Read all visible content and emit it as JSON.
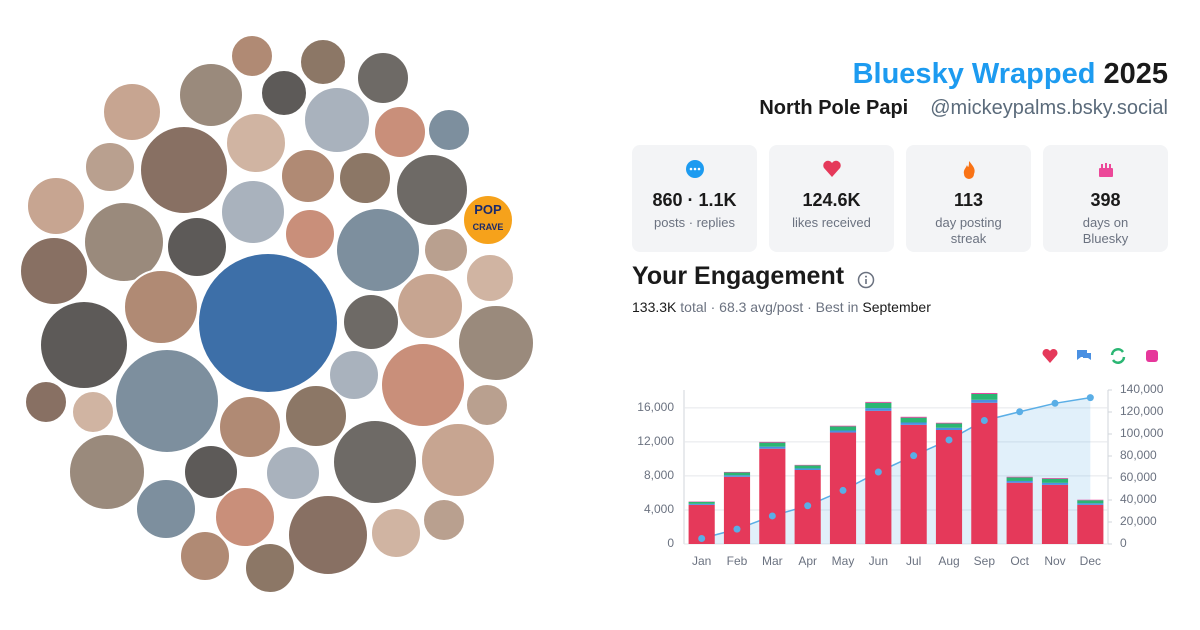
{
  "header": {
    "title": "Bluesky Wrapped",
    "year": "2025",
    "display_name": "North Pole Papi",
    "handle": "@mickeypalms.bsky.social"
  },
  "stats": [
    {
      "value": "860 · 1.1K",
      "label": "posts · replies"
    },
    {
      "value": "124.6K",
      "label": "likes received"
    },
    {
      "value": "113",
      "label": "day posting streak"
    },
    {
      "value": "398",
      "label": "days on Bluesky"
    }
  ],
  "engagement": {
    "title": "Your Engagement",
    "summary": [
      "133.3K",
      "total · 68.3 avg/post · Best in",
      "September"
    ]
  },
  "avatar_labels": [
    "POP",
    "CRAVE"
  ],
  "chart_data": {
    "type": "bar",
    "stacked": true,
    "grid": true,
    "categories": [
      "Jan",
      "Feb",
      "Mar",
      "Apr",
      "May",
      "Jun",
      "Jul",
      "Aug",
      "Sep",
      "Oct",
      "Nov",
      "Dec"
    ],
    "series": [
      {
        "color": "#e5395a",
        "values": [
          4600,
          7900,
          11200,
          8700,
          13100,
          15650,
          14000,
          13400,
          16600,
          7200,
          6950,
          4600
        ]
      },
      {
        "color": "#4a90e2",
        "values": [
          120,
          170,
          240,
          180,
          240,
          320,
          280,
          260,
          350,
          210,
          240,
          180
        ]
      },
      {
        "color": "#2bb673",
        "values": [
          240,
          340,
          480,
          360,
          480,
          630,
          570,
          510,
          690,
          420,
          480,
          360
        ]
      },
      {
        "color": "#e6379b",
        "values": [
          40,
          60,
          80,
          60,
          80,
          100,
          100,
          80,
          110,
          70,
          80,
          60
        ]
      },
      {
        "type": "line",
        "axis": "y2",
        "color": "#5aaee6",
        "values": [
          5000,
          13500,
          25500,
          34800,
          48700,
          65400,
          80300,
          94600,
          112300,
          120200,
          127900,
          133100
        ]
      }
    ],
    "ylim": [
      0,
      18100
    ],
    "yticks": [
      0,
      {
        "value": 4000,
        "label": "4,000"
      },
      {
        "value": 8000,
        "label": "8,000"
      },
      {
        "value": 12000,
        "label": "12,000"
      },
      {
        "value": 16000,
        "label": "16,000"
      }
    ],
    "y2lim": [
      0,
      140000
    ],
    "y2ticks": [
      0,
      {
        "value": 20000,
        "label": "20,000"
      },
      {
        "value": 40000,
        "label": "40,000"
      },
      {
        "value": 60000,
        "label": "60,000"
      },
      {
        "value": 80000,
        "label": "80,000"
      },
      {
        "value": 100000,
        "label": "100,000"
      },
      {
        "value": 120000,
        "label": "120,000"
      },
      {
        "value": 140000,
        "label": "140,000"
      }
    ]
  }
}
